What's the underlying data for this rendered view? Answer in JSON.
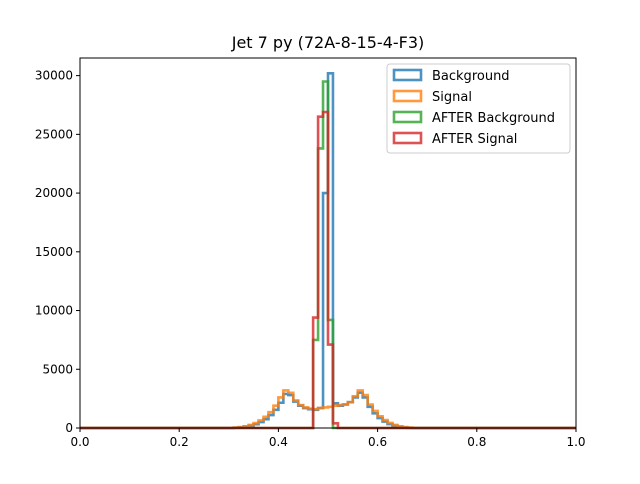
{
  "chart_data": {
    "type": "histogram",
    "title": "Jet 7 py (72A-8-15-4-F3)",
    "xlabel": "",
    "ylabel": "",
    "xlim": [
      0.0,
      1.0
    ],
    "ylim": [
      0,
      31500
    ],
    "x_ticks": [
      0.0,
      0.2,
      0.4,
      0.6,
      0.8,
      1.0
    ],
    "x_tick_labels": [
      "0.0",
      "0.2",
      "0.4",
      "0.6",
      "0.8",
      "1.0"
    ],
    "y_ticks": [
      0,
      5000,
      10000,
      15000,
      20000,
      25000,
      30000
    ],
    "y_tick_labels": [
      "0",
      "5000",
      "10000",
      "15000",
      "20000",
      "25000",
      "30000"
    ],
    "grid": false,
    "legend_position": "top-right",
    "bin_width": 0.01,
    "series": [
      {
        "name": "Background",
        "color": "#1f77b4",
        "bins": [
          [
            0.3,
            0
          ],
          [
            0.31,
            30
          ],
          [
            0.32,
            60
          ],
          [
            0.33,
            110
          ],
          [
            0.34,
            200
          ],
          [
            0.35,
            320
          ],
          [
            0.36,
            500
          ],
          [
            0.37,
            750
          ],
          [
            0.38,
            1100
          ],
          [
            0.39,
            1550
          ],
          [
            0.4,
            2150
          ],
          [
            0.41,
            2900
          ],
          [
            0.42,
            2800
          ],
          [
            0.43,
            2250
          ],
          [
            0.44,
            1900
          ],
          [
            0.45,
            1700
          ],
          [
            0.46,
            1600
          ],
          [
            0.47,
            1550
          ],
          [
            0.48,
            1700
          ],
          [
            0.49,
            20000
          ],
          [
            0.5,
            30200
          ],
          [
            0.51,
            2100
          ],
          [
            0.52,
            1900
          ],
          [
            0.53,
            2000
          ],
          [
            0.54,
            2200
          ],
          [
            0.55,
            2600
          ],
          [
            0.56,
            3000
          ],
          [
            0.57,
            2600
          ],
          [
            0.58,
            1800
          ],
          [
            0.59,
            1250
          ],
          [
            0.6,
            850
          ],
          [
            0.61,
            550
          ],
          [
            0.62,
            330
          ],
          [
            0.63,
            190
          ],
          [
            0.64,
            100
          ],
          [
            0.65,
            50
          ],
          [
            0.66,
            20
          ],
          [
            0.67,
            0
          ]
        ]
      },
      {
        "name": "Signal",
        "color": "#ff7f0e",
        "bins": [
          [
            0.3,
            0
          ],
          [
            0.31,
            40
          ],
          [
            0.32,
            80
          ],
          [
            0.33,
            150
          ],
          [
            0.34,
            260
          ],
          [
            0.35,
            420
          ],
          [
            0.36,
            650
          ],
          [
            0.37,
            950
          ],
          [
            0.38,
            1350
          ],
          [
            0.39,
            1900
          ],
          [
            0.4,
            2600
          ],
          [
            0.41,
            3200
          ],
          [
            0.42,
            3000
          ],
          [
            0.43,
            2350
          ],
          [
            0.44,
            1950
          ],
          [
            0.45,
            1750
          ],
          [
            0.46,
            1650
          ],
          [
            0.47,
            1600
          ],
          [
            0.48,
            1700
          ],
          [
            0.49,
            1750
          ],
          [
            0.5,
            1800
          ],
          [
            0.51,
            1900
          ],
          [
            0.52,
            1950
          ],
          [
            0.53,
            2000
          ],
          [
            0.54,
            2200
          ],
          [
            0.55,
            2700
          ],
          [
            0.56,
            3200
          ],
          [
            0.57,
            2800
          ],
          [
            0.58,
            2000
          ],
          [
            0.59,
            1450
          ],
          [
            0.6,
            1000
          ],
          [
            0.61,
            680
          ],
          [
            0.62,
            430
          ],
          [
            0.63,
            260
          ],
          [
            0.64,
            150
          ],
          [
            0.65,
            80
          ],
          [
            0.66,
            40
          ],
          [
            0.67,
            0
          ]
        ]
      },
      {
        "name": "AFTER Background",
        "color": "#2ca02c",
        "bins": [
          [
            0.45,
            0
          ],
          [
            0.46,
            0
          ],
          [
            0.47,
            7500
          ],
          [
            0.48,
            23800
          ],
          [
            0.49,
            29500
          ],
          [
            0.5,
            9200
          ],
          [
            0.51,
            0
          ]
        ]
      },
      {
        "name": "AFTER Signal",
        "color": "#d62728",
        "bins": [
          [
            0.45,
            0
          ],
          [
            0.46,
            0
          ],
          [
            0.47,
            9400
          ],
          [
            0.48,
            26500
          ],
          [
            0.49,
            26900
          ],
          [
            0.5,
            7100
          ],
          [
            0.51,
            400
          ],
          [
            0.52,
            0
          ]
        ]
      }
    ]
  }
}
